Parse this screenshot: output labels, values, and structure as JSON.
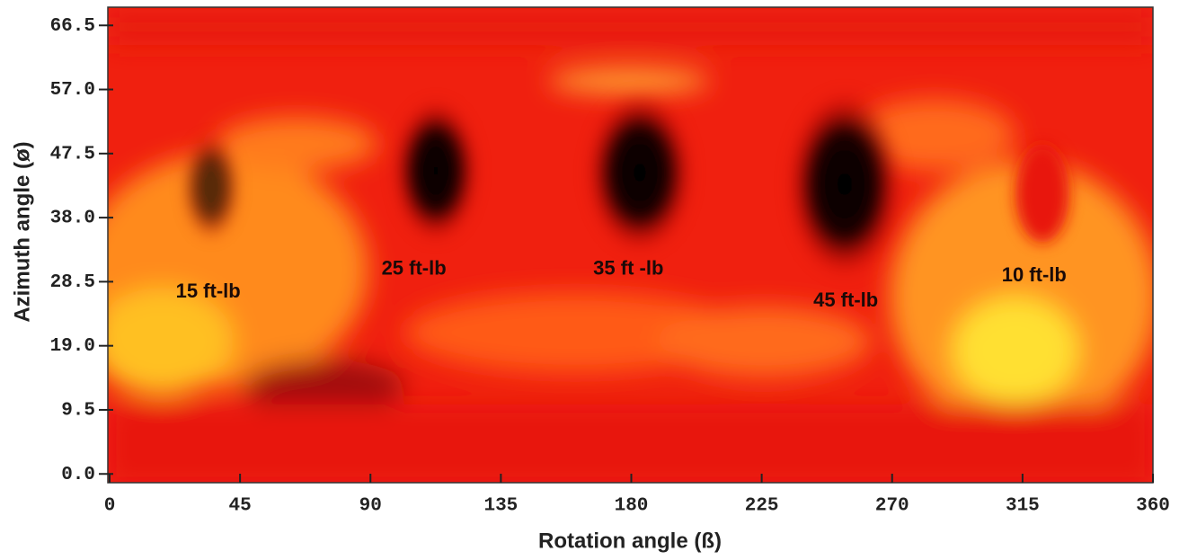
{
  "chart_data": {
    "type": "heatmap",
    "xlabel": "Rotation angle (ß)",
    "ylabel": "Azimuth angle (ø)",
    "xlim": [
      0,
      360
    ],
    "ylim": [
      -1.3,
      69.2
    ],
    "xticks": [
      0,
      45,
      90,
      135,
      180,
      225,
      270,
      315,
      360
    ],
    "yticks": [
      {
        "value": 0,
        "label": "0.0"
      },
      9.5,
      {
        "value": 19,
        "label": "19.0"
      },
      28.5,
      {
        "value": 38,
        "label": "38.0"
      },
      47.5,
      {
        "value": 57,
        "label": "57.0"
      },
      66.5
    ],
    "annotations": [
      {
        "text": "15 ft-lb",
        "x": 34,
        "y": 26.9
      },
      {
        "text": "25 ft-lb",
        "x": 105,
        "y": 30.3
      },
      {
        "text": "35 ft -lb",
        "x": 179,
        "y": 30.3
      },
      {
        "text": "45 ft-lb",
        "x": 254,
        "y": 25.6
      },
      {
        "text": "10 ft-lb",
        "x": 319,
        "y": 29.3
      }
    ]
  }
}
